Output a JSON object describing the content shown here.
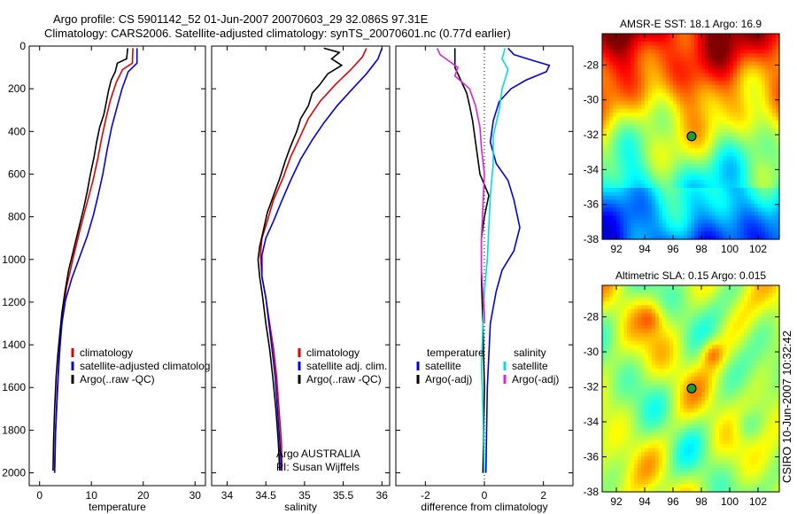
{
  "header": {
    "line1": "Argo profile: CS 5901142_52 01-Jun-2007 20070603_29 32.086S 97.31E",
    "line2": "Climatology: CARS2006. Satellite-adjusted climatology: synTS_20070601.nc (0.77d earlier)"
  },
  "side_label": "CSIRO 10-Jun-2007 10:32:42",
  "chart_data": [
    {
      "id": "temperature",
      "type": "line",
      "xlabel": "temperature",
      "ylabel": "",
      "xlim": [
        -2,
        32
      ],
      "ylim": [
        2060,
        0
      ],
      "xticks": [
        0,
        10,
        20,
        30
      ],
      "yticks": [
        0,
        200,
        400,
        600,
        800,
        1000,
        1200,
        1400,
        1600,
        1800,
        2000
      ],
      "legend": [
        "climatology",
        "satellite-adjusted climatolog",
        "Argo(..raw -QC)"
      ],
      "series": [
        {
          "name": "climatology",
          "color": "#e00000",
          "points": [
            [
              18.0,
              10
            ],
            [
              17.9,
              80
            ],
            [
              16.0,
              110
            ],
            [
              14.8,
              170
            ],
            [
              13.7,
              250
            ],
            [
              12.8,
              340
            ],
            [
              12.0,
              430
            ],
            [
              11.2,
              530
            ],
            [
              10.3,
              630
            ],
            [
              9.2,
              730
            ],
            [
              7.8,
              860
            ],
            [
              6.5,
              990
            ],
            [
              5.2,
              1130
            ],
            [
              4.5,
              1250
            ],
            [
              4.0,
              1380
            ],
            [
              3.6,
              1550
            ],
            [
              3.3,
              1700
            ],
            [
              3.0,
              1850
            ],
            [
              2.9,
              2000
            ]
          ]
        },
        {
          "name": "satellite-adjusted climatolog",
          "color": "#0000e0",
          "points": [
            [
              18.8,
              10
            ],
            [
              18.8,
              80
            ],
            [
              17.1,
              120
            ],
            [
              15.9,
              200
            ],
            [
              14.9,
              290
            ],
            [
              13.9,
              380
            ],
            [
              13.0,
              490
            ],
            [
              12.2,
              600
            ],
            [
              11.3,
              700
            ],
            [
              10.4,
              790
            ],
            [
              9.2,
              890
            ],
            [
              7.7,
              990
            ],
            [
              6.2,
              1090
            ],
            [
              5.0,
              1190
            ],
            [
              4.3,
              1300
            ],
            [
              3.8,
              1450
            ],
            [
              3.4,
              1620
            ],
            [
              3.1,
              1800
            ],
            [
              2.9,
              2000
            ]
          ]
        },
        {
          "name": "Argo(..raw -QC)",
          "color": "#000000",
          "points": [
            [
              17.0,
              10
            ],
            [
              16.8,
              60
            ],
            [
              15.0,
              80
            ],
            [
              14.6,
              120
            ],
            [
              13.8,
              160
            ],
            [
              13.3,
              210
            ],
            [
              12.9,
              260
            ],
            [
              12.4,
              320
            ],
            [
              11.6,
              380
            ],
            [
              11.0,
              450
            ],
            [
              10.5,
              520
            ],
            [
              9.8,
              600
            ],
            [
              9.2,
              680
            ],
            [
              8.5,
              760
            ],
            [
              7.5,
              860
            ],
            [
              6.5,
              960
            ],
            [
              5.6,
              1050
            ],
            [
              4.9,
              1150
            ],
            [
              4.3,
              1250
            ],
            [
              3.9,
              1350
            ],
            [
              3.5,
              1450
            ],
            [
              3.2,
              1550
            ],
            [
              2.9,
              1700
            ],
            [
              2.7,
              1850
            ],
            [
              2.6,
              1990
            ]
          ]
        }
      ]
    },
    {
      "id": "salinity",
      "type": "line",
      "xlabel": "salinity",
      "ylabel": "",
      "xlim": [
        33.8,
        36.1
      ],
      "ylim": [
        2060,
        0
      ],
      "xticks": [
        34,
        34.5,
        35,
        35.5,
        36
      ],
      "yticks": [
        0,
        200,
        400,
        600,
        800,
        1000,
        1200,
        1400,
        1600,
        1800,
        2000
      ],
      "legend": [
        "climatology",
        "satellite adj. clim.",
        "Argo(..raw -QC)"
      ],
      "annotations": [
        "Argo AUSTRALIA",
        "PI: Susan Wijffels"
      ],
      "series": [
        {
          "name": "climatology",
          "color": "#e00000",
          "points": [
            [
              35.8,
              10
            ],
            [
              35.75,
              50
            ],
            [
              35.6,
              110
            ],
            [
              35.4,
              180
            ],
            [
              35.2,
              260
            ],
            [
              35.05,
              340
            ],
            [
              34.95,
              420
            ],
            [
              34.82,
              520
            ],
            [
              34.72,
              620
            ],
            [
              34.6,
              720
            ],
            [
              34.52,
              820
            ],
            [
              34.45,
              900
            ],
            [
              34.43,
              980
            ],
            [
              34.45,
              1080
            ],
            [
              34.5,
              1180
            ],
            [
              34.55,
              1300
            ],
            [
              34.6,
              1420
            ],
            [
              34.64,
              1550
            ],
            [
              34.67,
              1700
            ],
            [
              34.7,
              1850
            ],
            [
              34.71,
              1990
            ]
          ]
        },
        {
          "name": "satellite adj. clim.",
          "color": "#0000e0",
          "points": [
            [
              36.0,
              10
            ],
            [
              35.95,
              60
            ],
            [
              35.8,
              130
            ],
            [
              35.62,
              200
            ],
            [
              35.42,
              280
            ],
            [
              35.25,
              360
            ],
            [
              35.1,
              440
            ],
            [
              34.95,
              530
            ],
            [
              34.82,
              630
            ],
            [
              34.7,
              730
            ],
            [
              34.6,
              820
            ],
            [
              34.5,
              900
            ],
            [
              34.45,
              980
            ],
            [
              34.45,
              1080
            ],
            [
              34.5,
              1180
            ],
            [
              34.54,
              1300
            ],
            [
              34.58,
              1420
            ],
            [
              34.62,
              1550
            ],
            [
              34.65,
              1700
            ],
            [
              34.68,
              1850
            ],
            [
              34.7,
              1990
            ]
          ]
        },
        {
          "name": "Argo(..raw -QC)",
          "color": "#000000",
          "points": [
            [
              35.25,
              10
            ],
            [
              35.45,
              30
            ],
            [
              35.35,
              60
            ],
            [
              35.48,
              90
            ],
            [
              35.3,
              130
            ],
            [
              35.2,
              180
            ],
            [
              35.1,
              220
            ],
            [
              35.05,
              280
            ],
            [
              34.95,
              340
            ],
            [
              34.9,
              400
            ],
            [
              34.82,
              470
            ],
            [
              34.75,
              540
            ],
            [
              34.68,
              620
            ],
            [
              34.6,
              700
            ],
            [
              34.52,
              780
            ],
            [
              34.47,
              860
            ],
            [
              34.42,
              940
            ],
            [
              34.4,
              1000
            ],
            [
              34.42,
              1080
            ],
            [
              34.46,
              1180
            ],
            [
              34.5,
              1300
            ],
            [
              34.55,
              1420
            ],
            [
              34.59,
              1550
            ],
            [
              34.63,
              1700
            ],
            [
              34.66,
              1850
            ],
            [
              34.68,
              1990
            ]
          ]
        }
      ]
    },
    {
      "id": "difference",
      "type": "line",
      "xlabel": "difference from climatology",
      "ylabel": "",
      "xlim": [
        -3,
        3
      ],
      "ylim": [
        2060,
        0
      ],
      "xticks": [
        -2,
        0,
        2
      ],
      "yticks": [
        0,
        200,
        400,
        600,
        800,
        1000,
        1200,
        1400,
        1600,
        1800,
        2000
      ],
      "legend_groups": [
        {
          "title": "temperature",
          "entries": [
            "satellite",
            "Argo(-adj)"
          ]
        },
        {
          "title": "salinity",
          "entries": [
            "satellite",
            "Argo(-adj)"
          ]
        }
      ],
      "series": [
        {
          "name": "temperature satellite",
          "color": "#0000e0",
          "points": [
            [
              0.8,
              10
            ],
            [
              1.0,
              40
            ],
            [
              1.7,
              70
            ],
            [
              2.2,
              90
            ],
            [
              2.1,
              120
            ],
            [
              1.4,
              160
            ],
            [
              0.9,
              200
            ],
            [
              0.5,
              260
            ],
            [
              0.3,
              350
            ],
            [
              0.2,
              450
            ],
            [
              0.4,
              550
            ],
            [
              0.8,
              630
            ],
            [
              1.0,
              720
            ],
            [
              1.2,
              850
            ],
            [
              1.0,
              960
            ],
            [
              0.6,
              1050
            ],
            [
              0.4,
              1150
            ],
            [
              0.2,
              1300
            ],
            [
              0.1,
              1600
            ],
            [
              0.05,
              2000
            ]
          ]
        },
        {
          "name": "temperature Argo(-adj)",
          "color": "#000000",
          "points": [
            [
              -1.0,
              10
            ],
            [
              -1.0,
              100
            ],
            [
              -0.8,
              160
            ],
            [
              -0.6,
              220
            ],
            [
              -0.5,
              280
            ],
            [
              -0.4,
              350
            ],
            [
              -0.3,
              450
            ],
            [
              -0.15,
              600
            ],
            [
              0.15,
              700
            ],
            [
              0.0,
              800
            ],
            [
              -0.1,
              900
            ],
            [
              -0.1,
              1000
            ],
            [
              -0.1,
              1100
            ],
            [
              -0.05,
              1300
            ],
            [
              0.0,
              1600
            ],
            [
              -0.05,
              2000
            ]
          ]
        },
        {
          "name": "salinity satellite",
          "color": "#00dddd",
          "points": [
            [
              0.7,
              10
            ],
            [
              0.6,
              60
            ],
            [
              0.8,
              110
            ],
            [
              0.6,
              200
            ],
            [
              0.5,
              300
            ],
            [
              0.3,
              420
            ],
            [
              0.3,
              550
            ],
            [
              0.2,
              700
            ],
            [
              0.15,
              850
            ],
            [
              0.1,
              1000
            ],
            [
              0.0,
              1150
            ],
            [
              -0.05,
              1300
            ],
            [
              -0.1,
              1500
            ],
            [
              -0.05,
              1700
            ],
            [
              0.0,
              2000
            ]
          ]
        },
        {
          "name": "salinity Argo(-adj)",
          "color": "#dd22dd",
          "points": [
            [
              -1.6,
              10
            ],
            [
              -1.5,
              40
            ],
            [
              -1.2,
              70
            ],
            [
              -0.9,
              100
            ],
            [
              -1.0,
              140
            ],
            [
              -0.5,
              200
            ],
            [
              -0.3,
              280
            ],
            [
              -0.15,
              380
            ],
            [
              -0.1,
              480
            ],
            [
              0.0,
              600
            ],
            [
              -0.05,
              750
            ],
            [
              -0.1,
              900
            ],
            [
              -0.1,
              1050
            ],
            [
              -0.05,
              1150
            ],
            [
              0.0,
              1250
            ],
            [
              0.0,
              1300
            ]
          ]
        }
      ]
    },
    {
      "id": "amsre-sst",
      "type": "heatmap",
      "title": "AMSR-E SST: 18.1 Argo: 16.9",
      "xlim": [
        91,
        103.5
      ],
      "ylim": [
        -38,
        -26.2
      ],
      "xticks": [
        92,
        94,
        96,
        98,
        100,
        102
      ],
      "yticks": [
        -28,
        -30,
        -32,
        -34,
        -36,
        -38
      ],
      "marker": {
        "x": 97.31,
        "y": -32.09
      }
    },
    {
      "id": "altimetric-sla",
      "type": "heatmap",
      "title": "Altimetric SLA: 0.15 Argo: 0.015",
      "xlim": [
        91,
        103.5
      ],
      "ylim": [
        -38,
        -26.2
      ],
      "xticks": [
        92,
        94,
        96,
        98,
        100,
        102
      ],
      "yticks": [
        -28,
        -30,
        -32,
        -34,
        -36,
        -38
      ],
      "marker": {
        "x": 97.31,
        "y": -32.09
      }
    }
  ]
}
